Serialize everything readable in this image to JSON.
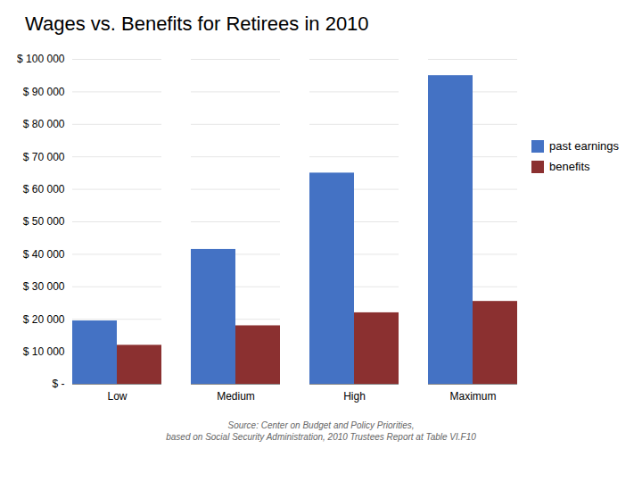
{
  "chart_data": {
    "type": "bar",
    "title": "Wages vs. Benefits for Retirees in 2010",
    "source": "Source: Center on Budget and Policy Priorities,\nbased on Social Security Administration, 2010 Trustees Report at Table VI.F10",
    "categories": [
      "Low",
      "Medium",
      "High",
      "Maximum"
    ],
    "series": [
      {
        "name": "past earnings",
        "color": "#4472C4",
        "values": [
          19500,
          41500,
          65000,
          95000
        ]
      },
      {
        "name": "benefits",
        "color": "#8B3030",
        "values": [
          12000,
          18000,
          22000,
          25500
        ]
      }
    ],
    "ylim": [
      0,
      100000
    ],
    "yticks": [
      {
        "value": 0,
        "label": "$ -"
      },
      {
        "value": 10000,
        "label": "$ 10 000"
      },
      {
        "value": 20000,
        "label": "$ 20 000"
      },
      {
        "value": 30000,
        "label": "$ 30 000"
      },
      {
        "value": 40000,
        "label": "$ 40 000"
      },
      {
        "value": 50000,
        "label": "$ 50 000"
      },
      {
        "value": 60000,
        "label": "$ 60 000"
      },
      {
        "value": 70000,
        "label": "$ 70 000"
      },
      {
        "value": 80000,
        "label": "$ 80 000"
      },
      {
        "value": 90000,
        "label": "$ 90 000"
      },
      {
        "value": 100000,
        "label": "$ 100 000"
      }
    ],
    "grid": true,
    "legend": "right"
  }
}
